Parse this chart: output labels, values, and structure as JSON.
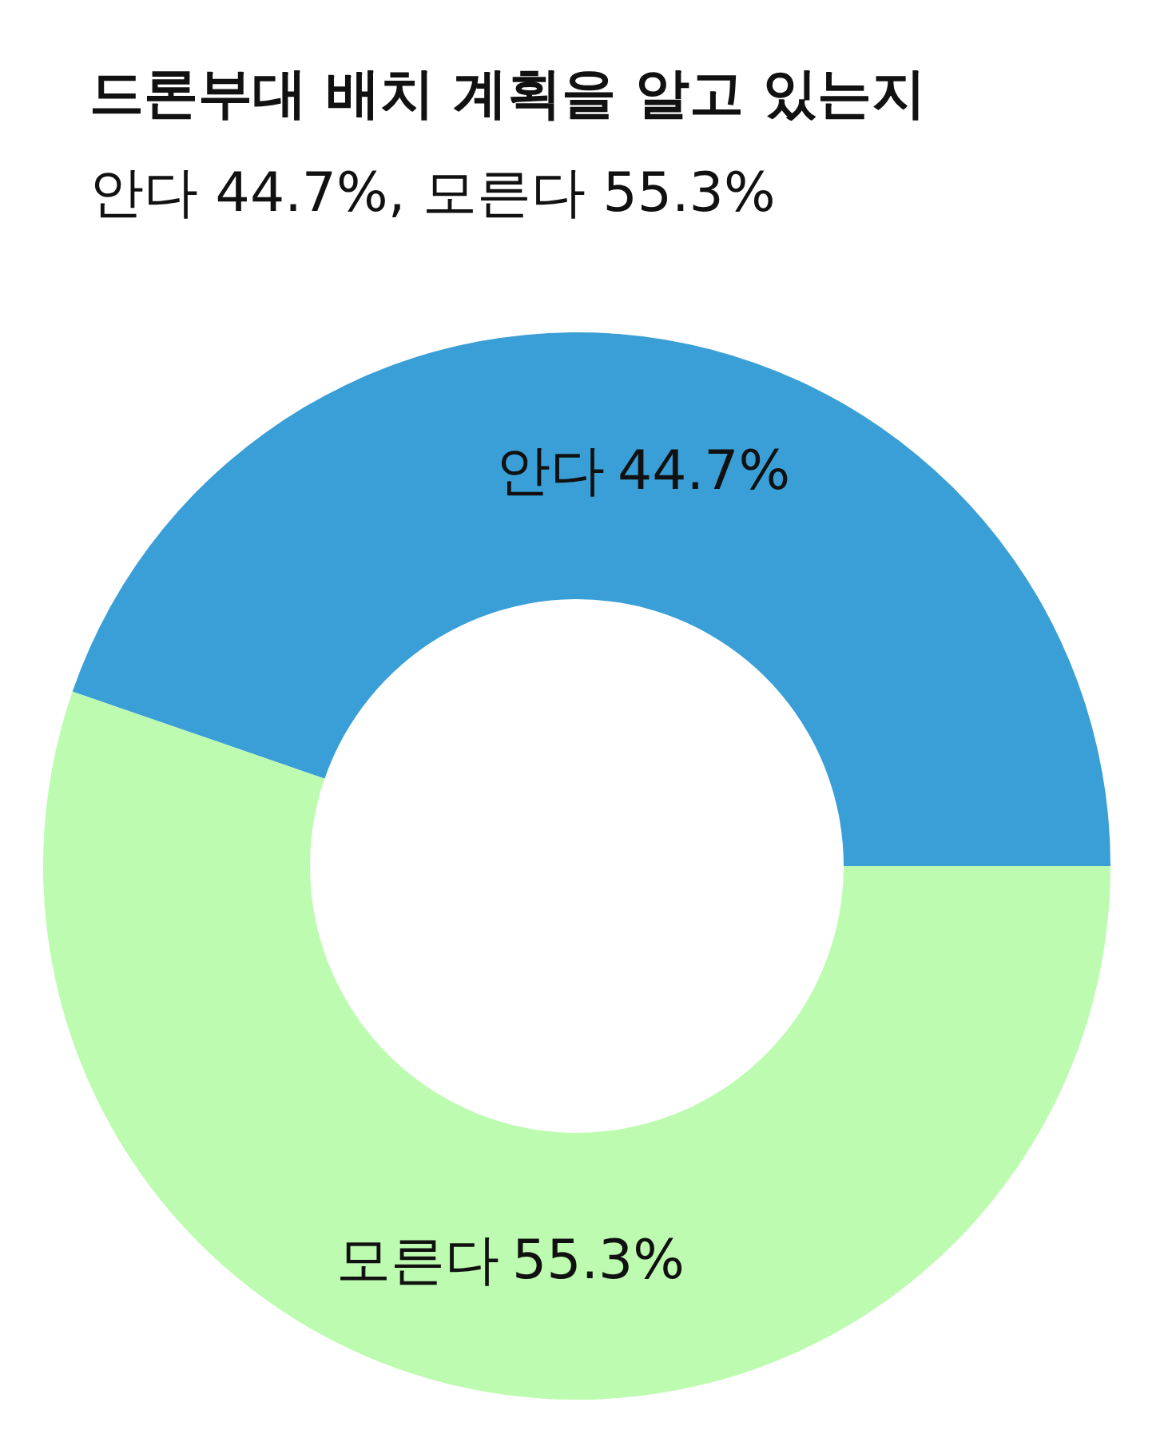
{
  "chart_data": {
    "type": "donut",
    "title": "드론부대 배치 계획을 알고 있는지",
    "subtitle": "안다 44.7%, 모른다 55.3%",
    "categories": [
      "안다",
      "모른다"
    ],
    "values": [
      44.7,
      55.3
    ],
    "colors": [
      "#3a9fd6",
      "#bdfcb0"
    ],
    "value_labels": [
      "44.7%",
      "55.3%"
    ]
  }
}
